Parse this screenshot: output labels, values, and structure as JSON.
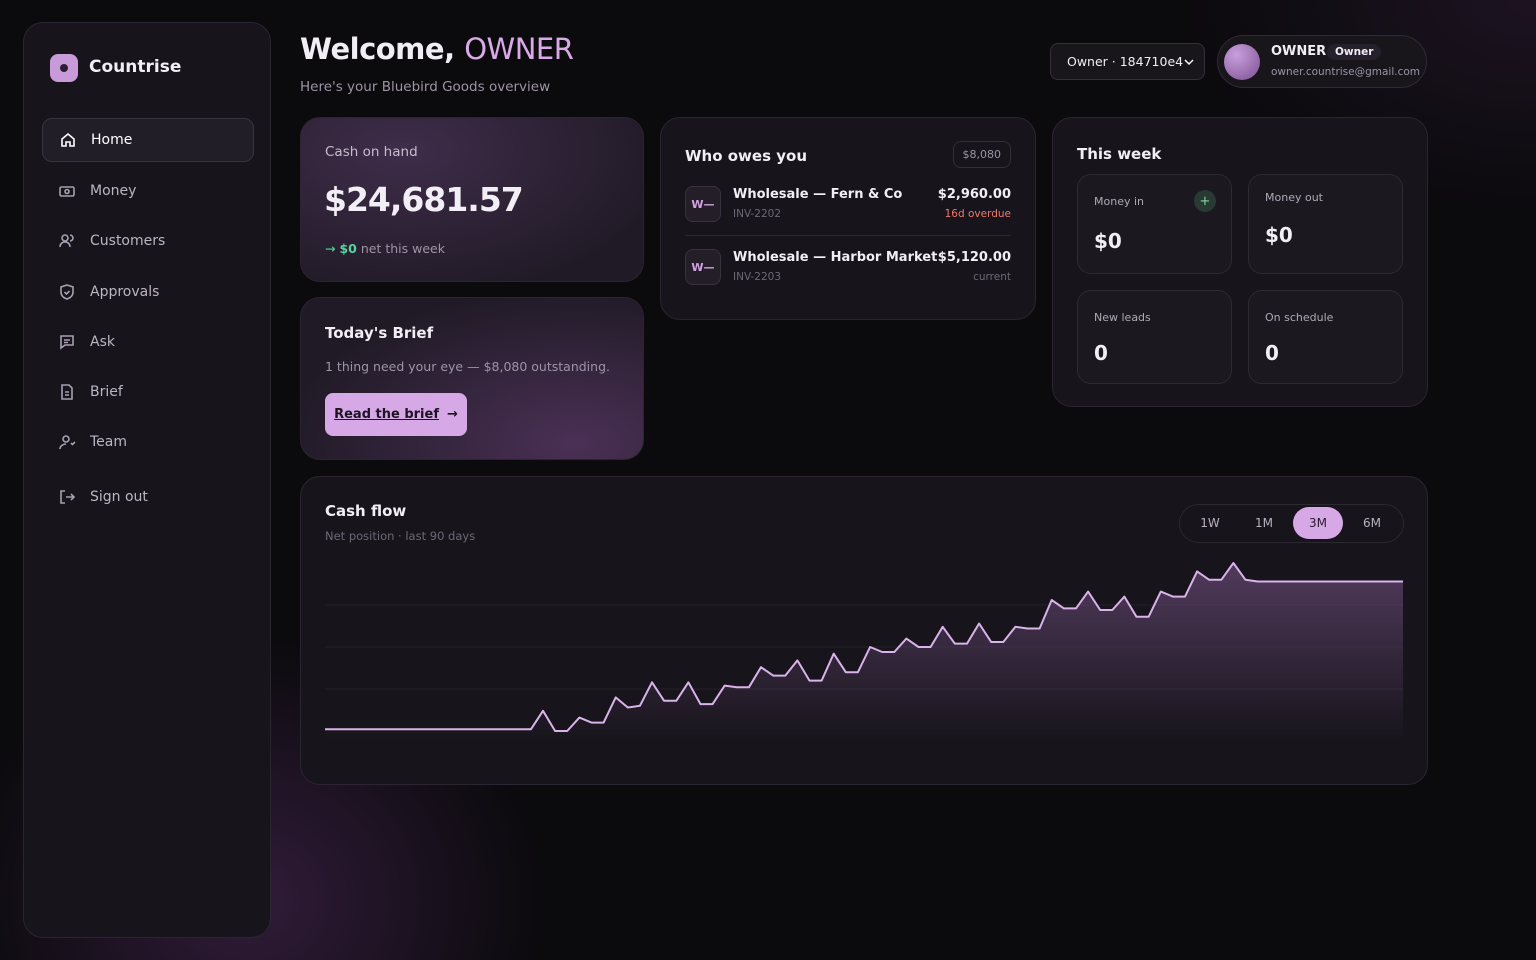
{
  "sidebar": {
    "brand": "Countrise",
    "nav": [
      "Home",
      "Money",
      "Customers",
      "Approvals",
      "Ask",
      "Brief",
      "Team"
    ],
    "sign_out": "Sign out"
  },
  "header": {
    "greeting": "Welcome,",
    "name": "OWNER",
    "subtitle": "Here's your Bluebird Goods overview",
    "account_select": "Owner · 184710e4",
    "user": {
      "name": "OWNER",
      "role": "Owner",
      "email": "owner.countrise@gmail.com"
    }
  },
  "cash_on_hand": {
    "label": "Cash on hand",
    "amount": "$24,681.57",
    "net": "$0",
    "net_label": "net this week"
  },
  "brief": {
    "title": "Today's Brief",
    "text": "1 thing need your eye — $8,080 outstanding.",
    "button": "Read the brief"
  },
  "who_owes": {
    "title": "Who owes you",
    "total": "$8,080",
    "items": [
      {
        "initials": "W—",
        "name": "Wholesale — Fern & Co",
        "invoice": "INV-2202",
        "amount": "$2,960.00",
        "status": "16d overdue"
      },
      {
        "initials": "W—",
        "name": "Wholesale — Harbor Market",
        "invoice": "INV-2203",
        "amount": "$5,120.00",
        "status": "current"
      }
    ]
  },
  "this_week": {
    "title": "This week",
    "tiles": [
      {
        "label": "Money in",
        "value": "$0"
      },
      {
        "label": "Money out",
        "value": "$0"
      },
      {
        "label": "New leads",
        "value": "0"
      },
      {
        "label": "On schedule",
        "value": "0"
      }
    ]
  },
  "chart_data": {
    "type": "line",
    "title": "Cash flow",
    "subtitle": "Net position · last 90 days",
    "ranges": [
      "1W",
      "1M",
      "3M",
      "6M"
    ],
    "selected_range": "3M",
    "color": "#d9b3ea",
    "ylim": [
      0,
      100
    ],
    "values": [
      1,
      1,
      1,
      1,
      1,
      1,
      1,
      1,
      1,
      1,
      1,
      1,
      1,
      1,
      1,
      1,
      1,
      1,
      12,
      0,
      0,
      8,
      5,
      5,
      20,
      14,
      15,
      29,
      18,
      18,
      29,
      16,
      16,
      27,
      26,
      26,
      38,
      33,
      33,
      42,
      30,
      30,
      46,
      35,
      35,
      50,
      47,
      47,
      55,
      50,
      50,
      62,
      52,
      52,
      64,
      53,
      53,
      62,
      61,
      61,
      78,
      73,
      73,
      83,
      72,
      72,
      80,
      68,
      68,
      83,
      80,
      80,
      95,
      90,
      90,
      100,
      90,
      89,
      89,
      89,
      89,
      89,
      89,
      89,
      89,
      89,
      89,
      89,
      89,
      89
    ]
  }
}
